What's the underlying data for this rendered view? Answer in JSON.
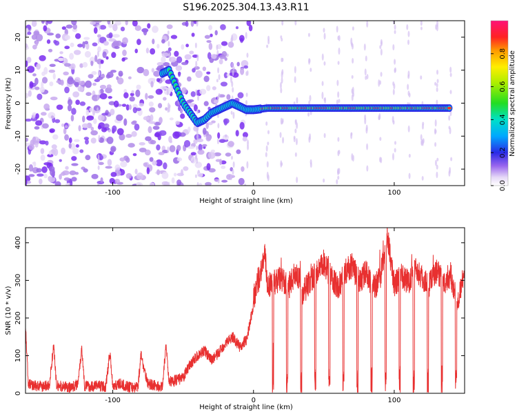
{
  "title": "S196.2025.304.13.43.R11",
  "chart_data": [
    {
      "type": "heatmap",
      "name": "spectrogram",
      "xlabel": "Height of straight line (km)",
      "ylabel": "Frequency (Hz)",
      "xlim": [
        -162,
        150
      ],
      "ylim": [
        -25,
        25
      ],
      "x_ticks": [
        -100,
        0,
        100
      ],
      "y_ticks": [
        -20,
        -10,
        0,
        10,
        20
      ],
      "colorbar": {
        "label": "Normalized spectral amplitude",
        "range": [
          0,
          1
        ],
        "ticks": [
          0.0,
          0.2,
          0.4,
          0.6,
          0.8
        ]
      },
      "dominant_ridge": [
        [
          -65,
          9
        ],
        [
          -60,
          10
        ],
        [
          -55,
          5
        ],
        [
          -50,
          0
        ],
        [
          -45,
          -3
        ],
        [
          -40,
          -6
        ],
        [
          -35,
          -5
        ],
        [
          -30,
          -3
        ],
        [
          -25,
          -2
        ],
        [
          -20,
          -1
        ],
        [
          -15,
          0
        ],
        [
          -10,
          -1
        ],
        [
          -5,
          -2
        ],
        [
          0,
          -2
        ],
        [
          10,
          -1.5
        ],
        [
          20,
          -1.5
        ],
        [
          40,
          -1.5
        ],
        [
          60,
          -1.5
        ],
        [
          80,
          -1.5
        ],
        [
          100,
          -1.5
        ],
        [
          120,
          -1.5
        ],
        [
          140,
          -1.5
        ]
      ]
    },
    {
      "type": "line",
      "name": "snr",
      "xlabel": "Height of straight line (km)",
      "ylabel": "SNR (10 * v/v)",
      "xlim": [
        -162,
        150
      ],
      "ylim": [
        0,
        440
      ],
      "x_ticks": [
        -100,
        0,
        100
      ],
      "y_ticks": [
        0,
        100,
        200,
        300,
        400
      ],
      "color": "#e83030",
      "x": [
        -162,
        -160,
        -155,
        -150,
        -145,
        -142,
        -140,
        -135,
        -130,
        -125,
        -122,
        -120,
        -115,
        -110,
        -105,
        -102,
        -100,
        -95,
        -90,
        -85,
        -82,
        -80,
        -75,
        -70,
        -65,
        -62,
        -60,
        -55,
        -50,
        -45,
        -40,
        -35,
        -30,
        -25,
        -20,
        -15,
        -10,
        -5,
        0,
        5,
        8,
        10,
        15,
        20,
        25,
        30,
        35,
        40,
        45,
        50,
        55,
        60,
        65,
        70,
        75,
        80,
        85,
        90,
        95,
        100,
        105,
        110,
        115,
        120,
        125,
        130,
        135,
        140,
        145,
        150
      ],
      "values": [
        200,
        25,
        20,
        18,
        22,
        140,
        20,
        18,
        15,
        25,
        130,
        20,
        18,
        22,
        15,
        120,
        20,
        25,
        18,
        15,
        20,
        110,
        25,
        20,
        15,
        140,
        30,
        35,
        40,
        80,
        100,
        120,
        90,
        110,
        140,
        160,
        130,
        150,
        250,
        330,
        380,
        290,
        300,
        310,
        280,
        330,
        270,
        300,
        330,
        350,
        320,
        280,
        330,
        350,
        300,
        330,
        280,
        310,
        440,
        290,
        320,
        300,
        340,
        310,
        290,
        330,
        300,
        320,
        250,
        320
      ]
    }
  ]
}
